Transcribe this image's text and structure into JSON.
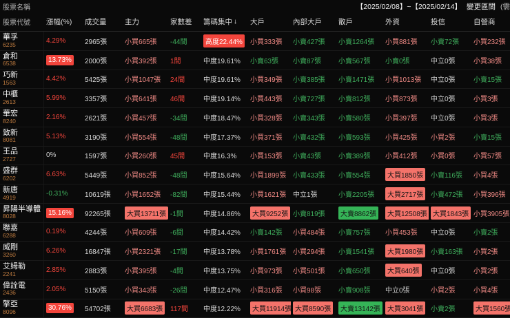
{
  "titlebar": {
    "stock_name_label": "股票名稱",
    "date_range": "【2025/02/08】~【2025/02/14】",
    "change_range_label": "變更區間",
    "cutoff_text": "(需"
  },
  "table": {
    "code_header": "股票代號",
    "sort_icon": "↓",
    "columns": [
      {
        "key": "change",
        "label": "漲幅(%)",
        "sorted": false
      },
      {
        "key": "volume",
        "label": "成交量",
        "sorted": false
      },
      {
        "key": "main",
        "label": "主力",
        "sorted": false
      },
      {
        "key": "diff",
        "label": "家數差",
        "sorted": false
      },
      {
        "key": "concentration",
        "label": "籌碼集中",
        "sorted": true
      },
      {
        "key": "bigholder",
        "label": "大戶",
        "sorted": false
      },
      {
        "key": "internal",
        "label": "內部大戶",
        "sorted": false
      },
      {
        "key": "retail",
        "label": "散戶",
        "sorted": false
      },
      {
        "key": "foreign",
        "label": "外資",
        "sorted": false
      },
      {
        "key": "trust",
        "label": "投信",
        "sorted": false
      },
      {
        "key": "dealer",
        "label": "自營商",
        "sorted": false
      }
    ],
    "rows": [
      {
        "name": "華孚",
        "code": "6235",
        "cells": [
          {
            "text": "4.29%",
            "style": "up"
          },
          {
            "text": "2965張",
            "style": "plain"
          },
          {
            "text": "小買665張",
            "style": "buy"
          },
          {
            "text": "-44間",
            "style": "down"
          },
          {
            "text": "高度22.44%",
            "style": "conc-badge"
          },
          {
            "text": "小買333張",
            "style": "buy"
          },
          {
            "text": "小賣427張",
            "style": "sell"
          },
          {
            "text": "小賣1264張",
            "style": "sell"
          },
          {
            "text": "小買881張",
            "style": "buy"
          },
          {
            "text": "小賣72張",
            "style": "sell"
          },
          {
            "text": "小買232張",
            "style": "buy"
          }
        ]
      },
      {
        "name": "倉和",
        "code": "6538",
        "cells": [
          {
            "text": "13.73%",
            "style": "up-badge"
          },
          {
            "text": "2000張",
            "style": "plain"
          },
          {
            "text": "小買392張",
            "style": "buy"
          },
          {
            "text": "1間",
            "style": "up"
          },
          {
            "text": "中度19.61%",
            "style": "plain"
          },
          {
            "text": "小賣63張",
            "style": "sell"
          },
          {
            "text": "小賣87張",
            "style": "sell"
          },
          {
            "text": "小賣567張",
            "style": "sell"
          },
          {
            "text": "小賣0張",
            "style": "sell"
          },
          {
            "text": "中立0張",
            "style": "neutral"
          },
          {
            "text": "小買38張",
            "style": "buy"
          }
        ]
      },
      {
        "name": "巧新",
        "code": "1563",
        "cells": [
          {
            "text": "4.42%",
            "style": "up"
          },
          {
            "text": "5425張",
            "style": "plain"
          },
          {
            "text": "小買1047張",
            "style": "buy"
          },
          {
            "text": "24間",
            "style": "up"
          },
          {
            "text": "中度19.61%",
            "style": "plain"
          },
          {
            "text": "小買349張",
            "style": "buy"
          },
          {
            "text": "小賣385張",
            "style": "sell"
          },
          {
            "text": "小賣1471張",
            "style": "sell"
          },
          {
            "text": "小買1013張",
            "style": "buy"
          },
          {
            "text": "中立0張",
            "style": "neutral"
          },
          {
            "text": "小賣15張",
            "style": "sell"
          }
        ]
      },
      {
        "name": "中櫃",
        "code": "2613",
        "cells": [
          {
            "text": "5.99%",
            "style": "up"
          },
          {
            "text": "3357張",
            "style": "plain"
          },
          {
            "text": "小買641張",
            "style": "buy"
          },
          {
            "text": "46間",
            "style": "up"
          },
          {
            "text": "中度19.14%",
            "style": "plain"
          },
          {
            "text": "小買443張",
            "style": "buy"
          },
          {
            "text": "小賣727張",
            "style": "sell"
          },
          {
            "text": "小賣812張",
            "style": "sell"
          },
          {
            "text": "小買873張",
            "style": "buy"
          },
          {
            "text": "中立0張",
            "style": "neutral"
          },
          {
            "text": "小買3張",
            "style": "buy"
          }
        ]
      },
      {
        "name": "華宏",
        "code": "8240",
        "cells": [
          {
            "text": "2.16%",
            "style": "up"
          },
          {
            "text": "2621張",
            "style": "plain"
          },
          {
            "text": "小買457張",
            "style": "buy"
          },
          {
            "text": "-34間",
            "style": "down"
          },
          {
            "text": "中度18.47%",
            "style": "plain"
          },
          {
            "text": "小買328張",
            "style": "buy"
          },
          {
            "text": "小賣343張",
            "style": "sell"
          },
          {
            "text": "小賣580張",
            "style": "sell"
          },
          {
            "text": "小買397張",
            "style": "buy"
          },
          {
            "text": "中立0張",
            "style": "neutral"
          },
          {
            "text": "小買3張",
            "style": "buy"
          }
        ]
      },
      {
        "name": "致新",
        "code": "8081",
        "cells": [
          {
            "text": "5.13%",
            "style": "up"
          },
          {
            "text": "3190張",
            "style": "plain"
          },
          {
            "text": "小買554張",
            "style": "buy"
          },
          {
            "text": "-48間",
            "style": "down"
          },
          {
            "text": "中度17.37%",
            "style": "plain"
          },
          {
            "text": "小買371張",
            "style": "buy"
          },
          {
            "text": "小賣432張",
            "style": "sell"
          },
          {
            "text": "小賣593張",
            "style": "sell"
          },
          {
            "text": "小買425張",
            "style": "buy"
          },
          {
            "text": "小買2張",
            "style": "buy"
          },
          {
            "text": "小賣15張",
            "style": "sell"
          }
        ]
      },
      {
        "name": "王品",
        "code": "2727",
        "cells": [
          {
            "text": "0%",
            "style": "neutral"
          },
          {
            "text": "1597張",
            "style": "plain"
          },
          {
            "text": "小買260張",
            "style": "buy"
          },
          {
            "text": "45間",
            "style": "up"
          },
          {
            "text": "中度16.3%",
            "style": "plain"
          },
          {
            "text": "小買153張",
            "style": "buy"
          },
          {
            "text": "小賣43張",
            "style": "sell"
          },
          {
            "text": "小賣389張",
            "style": "sell"
          },
          {
            "text": "小買412張",
            "style": "buy"
          },
          {
            "text": "小買0張",
            "style": "buy"
          },
          {
            "text": "小買57張",
            "style": "buy"
          }
        ]
      },
      {
        "name": "盛群",
        "code": "6202",
        "cells": [
          {
            "text": "6.63%",
            "style": "up"
          },
          {
            "text": "5449張",
            "style": "plain"
          },
          {
            "text": "小買852張",
            "style": "buy"
          },
          {
            "text": "-48間",
            "style": "down"
          },
          {
            "text": "中度15.64%",
            "style": "plain"
          },
          {
            "text": "小買1899張",
            "style": "buy"
          },
          {
            "text": "小賣433張",
            "style": "sell"
          },
          {
            "text": "小賣554張",
            "style": "sell"
          },
          {
            "text": "大買1850張",
            "style": "buy-badge"
          },
          {
            "text": "小賣116張",
            "style": "sell"
          },
          {
            "text": "小買4張",
            "style": "buy"
          }
        ]
      },
      {
        "name": "新唐",
        "code": "4919",
        "cells": [
          {
            "text": "-0.31%",
            "style": "down"
          },
          {
            "text": "10619張",
            "style": "plain"
          },
          {
            "text": "小買1652張",
            "style": "buy"
          },
          {
            "text": "-82間",
            "style": "down"
          },
          {
            "text": "中度15.44%",
            "style": "plain"
          },
          {
            "text": "小買1621張",
            "style": "buy"
          },
          {
            "text": "中立1張",
            "style": "neutral"
          },
          {
            "text": "小賣2205張",
            "style": "sell"
          },
          {
            "text": "大買2717張",
            "style": "buy-badge"
          },
          {
            "text": "小賣472張",
            "style": "sell"
          },
          {
            "text": "小買396張",
            "style": "buy"
          }
        ]
      },
      {
        "name": "昇陽半導體",
        "code": "8028",
        "cells": [
          {
            "text": "15.16%",
            "style": "up-badge"
          },
          {
            "text": "92265張",
            "style": "plain"
          },
          {
            "text": "大買13711張",
            "style": "buy-badge"
          },
          {
            "text": "-1間",
            "style": "down"
          },
          {
            "text": "中度14.86%",
            "style": "plain"
          },
          {
            "text": "大買9252張",
            "style": "buy-badge"
          },
          {
            "text": "小賣819張",
            "style": "sell"
          },
          {
            "text": "大賣8862張",
            "style": "sell-badge"
          },
          {
            "text": "大買12508張",
            "style": "buy-badge"
          },
          {
            "text": "大買1843張",
            "style": "buy-badge"
          },
          {
            "text": "小買3905張",
            "style": "buy"
          }
        ]
      },
      {
        "name": "聯嘉",
        "code": "6288",
        "cells": [
          {
            "text": "0.19%",
            "style": "up"
          },
          {
            "text": "4244張",
            "style": "plain"
          },
          {
            "text": "小買609張",
            "style": "buy"
          },
          {
            "text": "-6間",
            "style": "down"
          },
          {
            "text": "中度14.42%",
            "style": "plain"
          },
          {
            "text": "小賣142張",
            "style": "sell"
          },
          {
            "text": "小買484張",
            "style": "buy"
          },
          {
            "text": "小賣757張",
            "style": "sell"
          },
          {
            "text": "小買453張",
            "style": "buy"
          },
          {
            "text": "中立0張",
            "style": "neutral"
          },
          {
            "text": "小賣2張",
            "style": "sell"
          }
        ]
      },
      {
        "name": "威剛",
        "code": "3260",
        "cells": [
          {
            "text": "6.26%",
            "style": "up"
          },
          {
            "text": "16847張",
            "style": "plain"
          },
          {
            "text": "小買2321張",
            "style": "buy"
          },
          {
            "text": "-17間",
            "style": "down"
          },
          {
            "text": "中度13.78%",
            "style": "plain"
          },
          {
            "text": "小買1761張",
            "style": "buy"
          },
          {
            "text": "小買294張",
            "style": "buy"
          },
          {
            "text": "小賣1541張",
            "style": "sell"
          },
          {
            "text": "大買1980張",
            "style": "buy-badge"
          },
          {
            "text": "小賣163張",
            "style": "sell"
          },
          {
            "text": "小買2張",
            "style": "buy"
          }
        ]
      },
      {
        "name": "艾姆勒",
        "code": "2241",
        "cells": [
          {
            "text": "2.85%",
            "style": "up"
          },
          {
            "text": "2883張",
            "style": "plain"
          },
          {
            "text": "小買395張",
            "style": "buy"
          },
          {
            "text": "-4間",
            "style": "down"
          },
          {
            "text": "中度13.75%",
            "style": "plain"
          },
          {
            "text": "小買973張",
            "style": "buy"
          },
          {
            "text": "小買501張",
            "style": "buy"
          },
          {
            "text": "小賣650張",
            "style": "sell"
          },
          {
            "text": "大買640張",
            "style": "buy-badge"
          },
          {
            "text": "中立0張",
            "style": "neutral"
          },
          {
            "text": "小買2張",
            "style": "buy"
          }
        ]
      },
      {
        "name": "偉詮電",
        "code": "2436",
        "cells": [
          {
            "text": "2.05%",
            "style": "up"
          },
          {
            "text": "5150張",
            "style": "plain"
          },
          {
            "text": "小買343張",
            "style": "buy"
          },
          {
            "text": "-26間",
            "style": "down"
          },
          {
            "text": "中度12.47%",
            "style": "plain"
          },
          {
            "text": "小買316張",
            "style": "buy"
          },
          {
            "text": "小買98張",
            "style": "buy"
          },
          {
            "text": "小賣908張",
            "style": "sell"
          },
          {
            "text": "中立0張",
            "style": "neutral"
          },
          {
            "text": "小買2張",
            "style": "buy"
          },
          {
            "text": "小買4張",
            "style": "buy"
          }
        ]
      },
      {
        "name": "擎亞",
        "code": "8096",
        "cells": [
          {
            "text": "30.76%",
            "style": "up-badge"
          },
          {
            "text": "54702張",
            "style": "plain"
          },
          {
            "text": "大買6683張",
            "style": "buy-badge"
          },
          {
            "text": "117間",
            "style": "up"
          },
          {
            "text": "中度12.22%",
            "style": "plain"
          },
          {
            "text": "大買11914張",
            "style": "buy-badge"
          },
          {
            "text": "大買8590張",
            "style": "buy-badge"
          },
          {
            "text": "大賣13142張",
            "style": "sell-badge"
          },
          {
            "text": "大買3041張",
            "style": "buy-badge"
          },
          {
            "text": "小賣2張",
            "style": "sell"
          },
          {
            "text": "大買1560張",
            "style": "buy-badge"
          }
        ]
      }
    ]
  },
  "colors": {
    "background": "#0a0a0a",
    "up_red": "#f3453c",
    "buy_pink": "#f08a85",
    "sell_green": "#3fae5c",
    "buy_badge_bg": "#f4736a",
    "sell_badge_bg": "#35b457",
    "stock_code_orange": "#bd7a3f"
  }
}
